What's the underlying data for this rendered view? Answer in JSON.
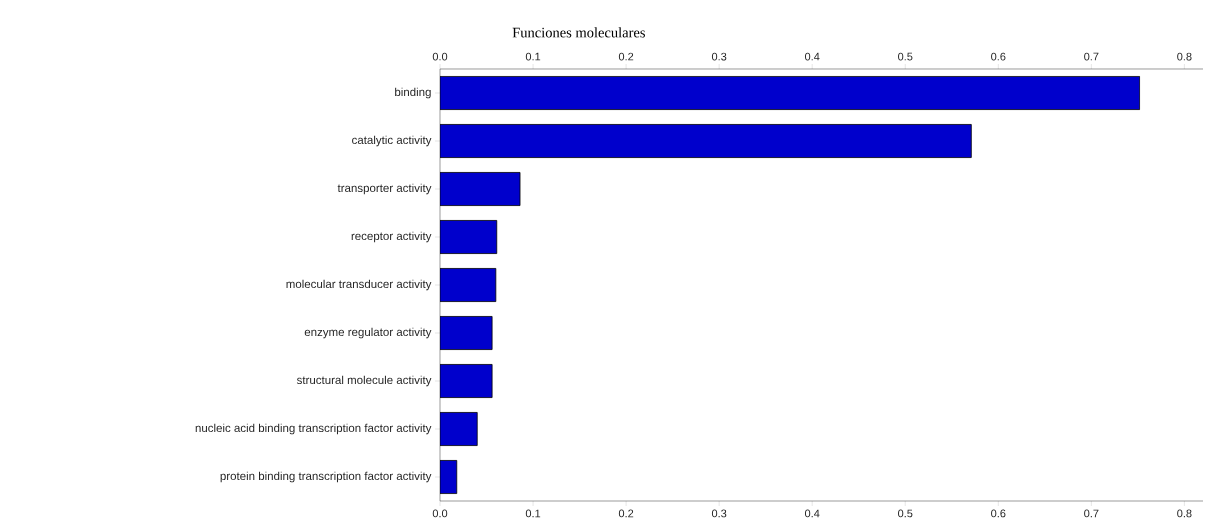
{
  "chart_data": {
    "type": "bar",
    "orientation": "horizontal",
    "title": "Funciones moleculares",
    "categories": [
      "binding",
      "catalytic activity",
      "transporter activity",
      "receptor activity",
      "molecular transducer activity",
      "enzyme regulator activity",
      "structural molecule activity",
      "nucleic acid binding transcription factor activity",
      "protein binding transcription factor activity"
    ],
    "values": [
      0.752,
      0.571,
      0.086,
      0.061,
      0.06,
      0.056,
      0.056,
      0.04,
      0.018
    ],
    "color": "#0000cc",
    "xlim": [
      0,
      0.82
    ],
    "xticks": [
      {
        "value": 0,
        "label": "0.0"
      },
      0.1,
      0.2,
      0.3,
      0.4,
      0.5,
      0.6,
      0.7,
      0.8
    ],
    "x2lim": [
      0,
      0.82
    ],
    "x2ticks": [
      {
        "value": 0,
        "label": "0.0"
      },
      0.1,
      0.2,
      0.3,
      0.4,
      0.5,
      0.6,
      0.7,
      0.8
    ],
    "grid": false
  }
}
